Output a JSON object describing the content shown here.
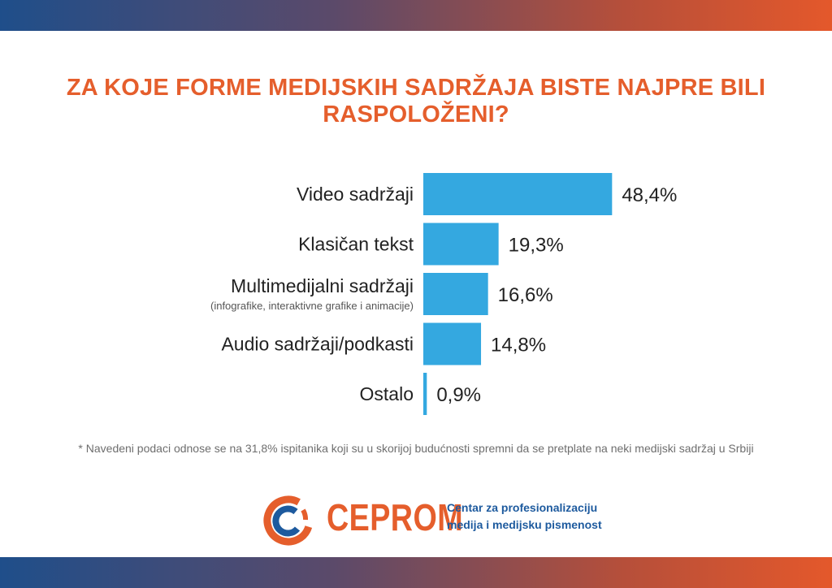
{
  "title": "ZA KOJE FORME MEDIJSKIH SADRŽAJA BISTE NAJPRE BILI RASPOLOŽENI?",
  "chart_data": {
    "type": "bar",
    "orientation": "horizontal",
    "categories": [
      "Video sadržaji",
      "Klasičan tekst",
      "Multimedijalni sadržaji",
      "Audio sadržaji/podkasti",
      "Ostalo"
    ],
    "category_sublabels": [
      "",
      "",
      "(infografike, interaktivne grafike i animacije)",
      "",
      ""
    ],
    "values": [
      48.4,
      19.3,
      16.6,
      14.8,
      0.9
    ],
    "value_labels": [
      "48,4%",
      "19,3%",
      "16,6%",
      "14,8%",
      "0,9%"
    ],
    "unit": "%",
    "bar_color": "#34a8e0",
    "grid": false
  },
  "footnote": "* Navedeni podaci odnose se na 31,8% ispitanika koji su u skorijoj budućnosti spremni da se pretplate na neki medijski sadržaj u Srbiji",
  "logo": {
    "name": "CEPROM",
    "tagline_line1": "Centar za profesionalizaciju",
    "tagline_line2": "medija i medijsku pismenost",
    "colors": {
      "orange": "#e55e2c",
      "blue": "#1d5a9e"
    }
  }
}
